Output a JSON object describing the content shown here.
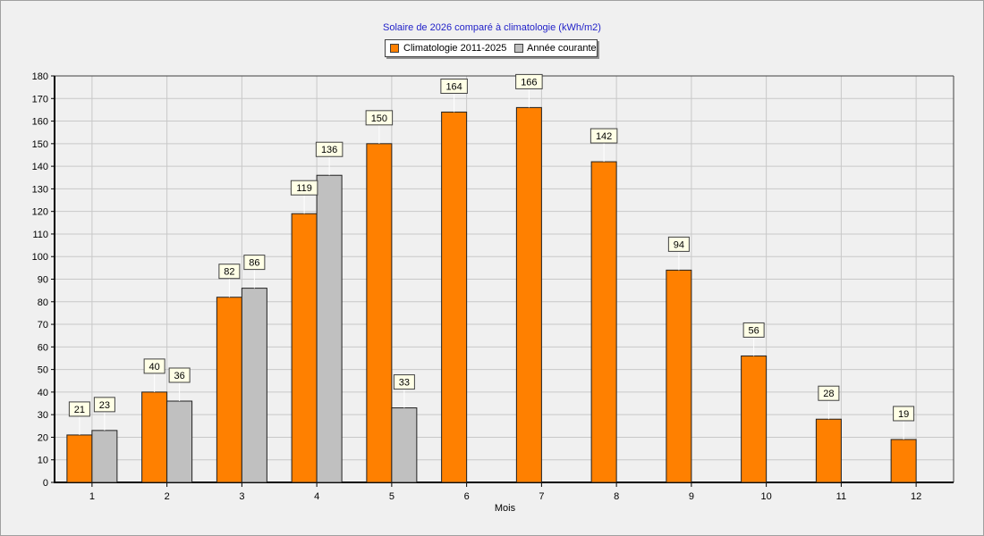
{
  "chart_data": {
    "type": "bar",
    "title": "Solaire de 2026 comparé à climatologie (kWh/m2)",
    "xlabel": "Mois",
    "ylabel": "",
    "ylim": [
      0,
      180
    ],
    "yticks": [
      0,
      10,
      20,
      30,
      40,
      50,
      60,
      70,
      80,
      90,
      100,
      110,
      120,
      130,
      140,
      150,
      160,
      170,
      180
    ],
    "grid": true,
    "legend_position": "top-center",
    "categories": [
      "1",
      "2",
      "3",
      "4",
      "5",
      "6",
      "7",
      "8",
      "9",
      "10",
      "11",
      "12"
    ],
    "series": [
      {
        "name": "Climatologie 2011-2025",
        "color": "#ff8000",
        "values": [
          21,
          40,
          82,
          119,
          150,
          164,
          166,
          142,
          94,
          56,
          28,
          19
        ]
      },
      {
        "name": "Année courante",
        "color": "#c0c0c0",
        "values": [
          23,
          36,
          86,
          136,
          33,
          null,
          null,
          null,
          null,
          null,
          null,
          null
        ]
      }
    ]
  }
}
